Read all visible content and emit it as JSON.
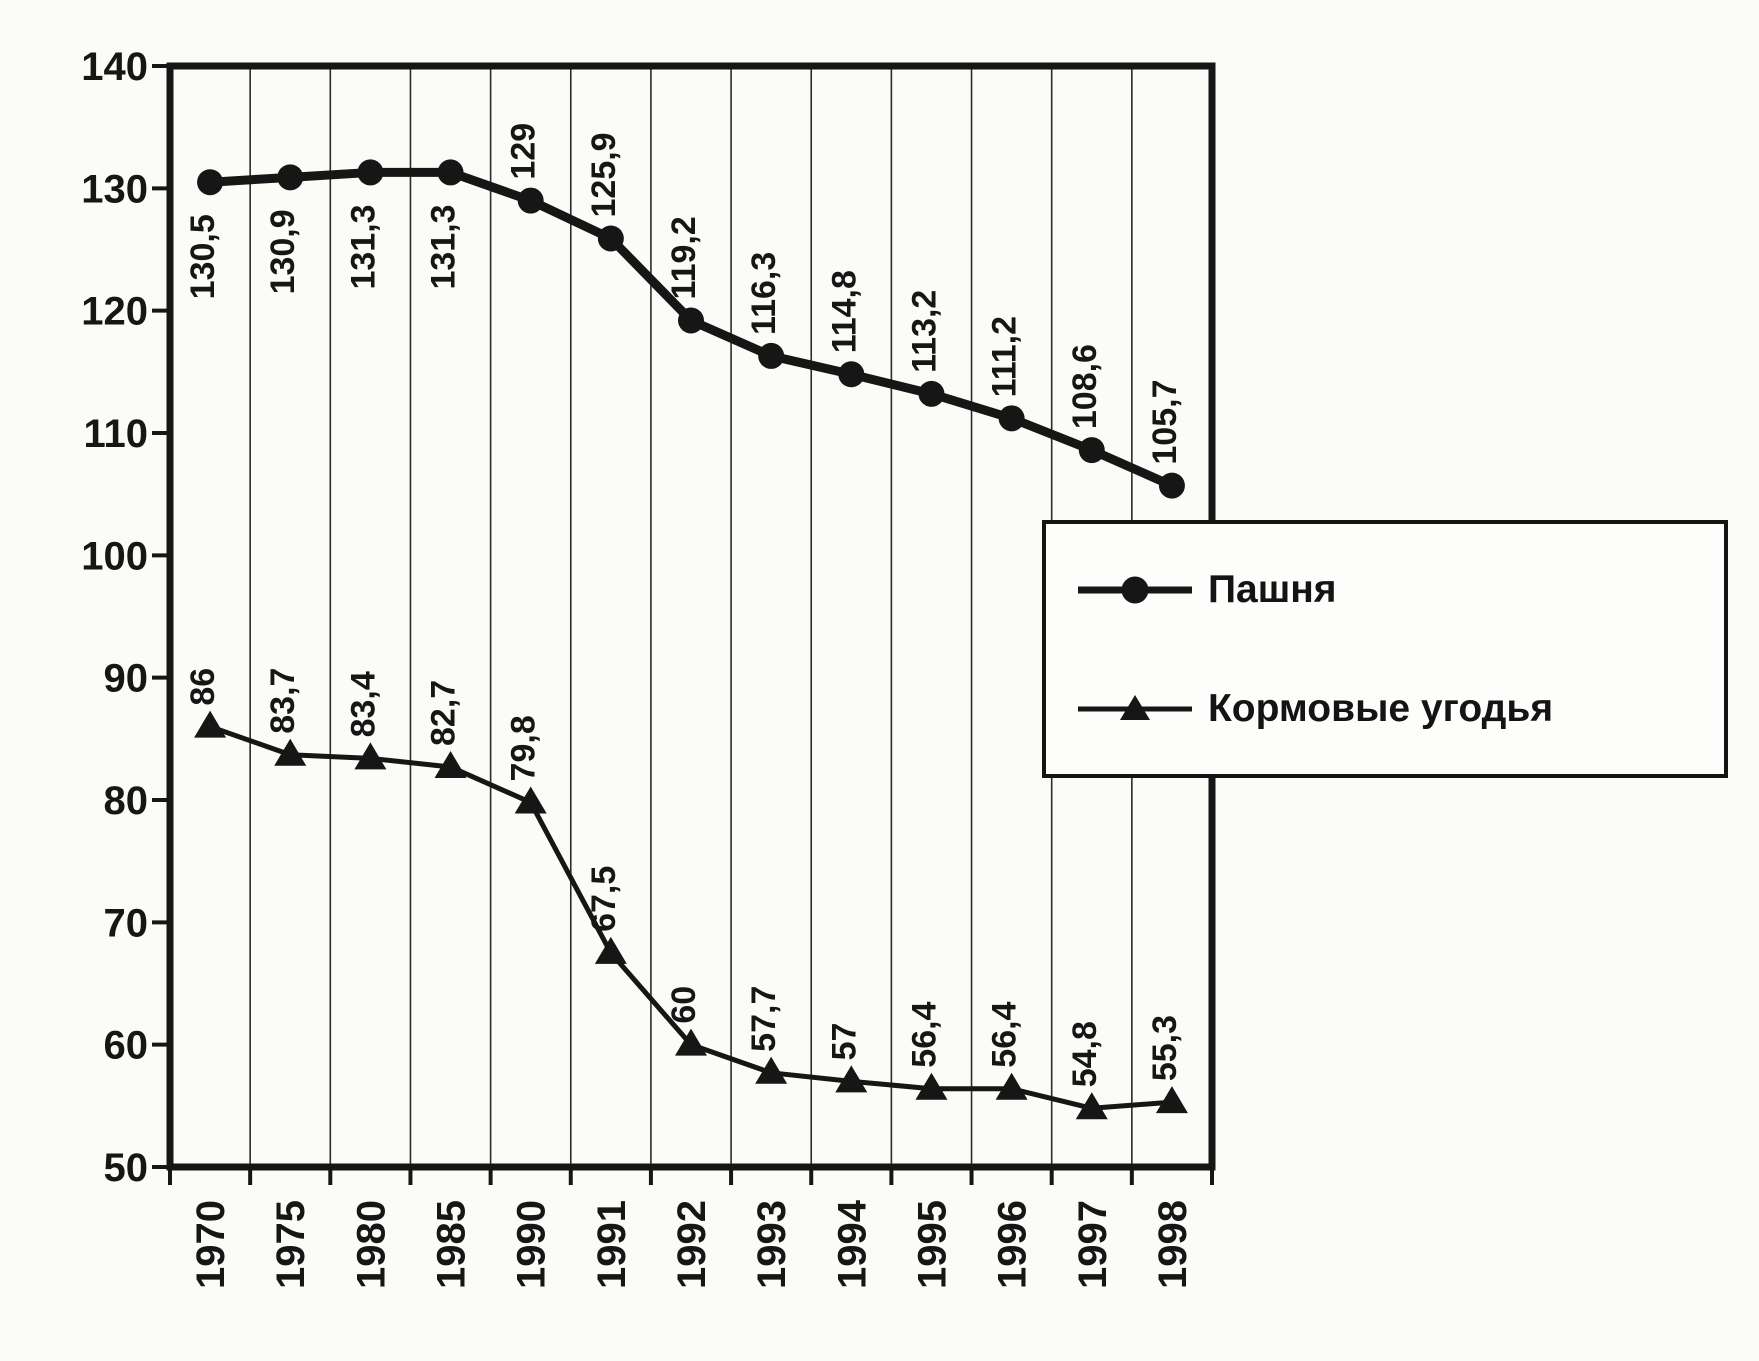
{
  "page": {
    "kind": "scanned line chart figure"
  },
  "chart_data": {
    "type": "line",
    "title": "",
    "xlabel": "",
    "ylabel": "",
    "categories": [
      "1970",
      "1975",
      "1980",
      "1985",
      "1990",
      "1991",
      "1992",
      "1993",
      "1994",
      "1995",
      "1996",
      "1997",
      "1998"
    ],
    "series": [
      {
        "name": "Пашня",
        "marker": "circle",
        "values": [
          130.5,
          130.9,
          131.3,
          131.3,
          129,
          125.9,
          119.2,
          116.3,
          114.8,
          113.2,
          111.2,
          108.6,
          105.7
        ],
        "labels": [
          "130,5",
          "130,9",
          "131,3",
          "131,3",
          "129",
          "125,9",
          "119,2",
          "116,3",
          "114,8",
          "113,2",
          "111,2",
          "108,6",
          "105,7"
        ],
        "labels_below_count": 4,
        "line_width": 9
      },
      {
        "name": "Кормовые угодья",
        "marker": "triangle",
        "values": [
          86,
          83.7,
          83.4,
          82.7,
          79.8,
          67.5,
          60,
          57.7,
          57,
          56.4,
          56.4,
          54.8,
          55.3
        ],
        "labels": [
          "86",
          "83,7",
          "83,4",
          "82,7",
          "79,8",
          "67,5",
          "60",
          "57,7",
          "57",
          "56,4",
          "56,4",
          "54,8",
          "55,3"
        ],
        "labels_below_count": 0,
        "line_width": 5
      }
    ],
    "ylim": [
      50,
      140
    ],
    "yticks": [
      "140",
      "130",
      "120",
      "110",
      "100",
      "90",
      "80",
      "70",
      "60",
      "50"
    ],
    "grid": "vertical-only",
    "legend_position": "overlay-right-middle",
    "ink_color": "#161616"
  }
}
